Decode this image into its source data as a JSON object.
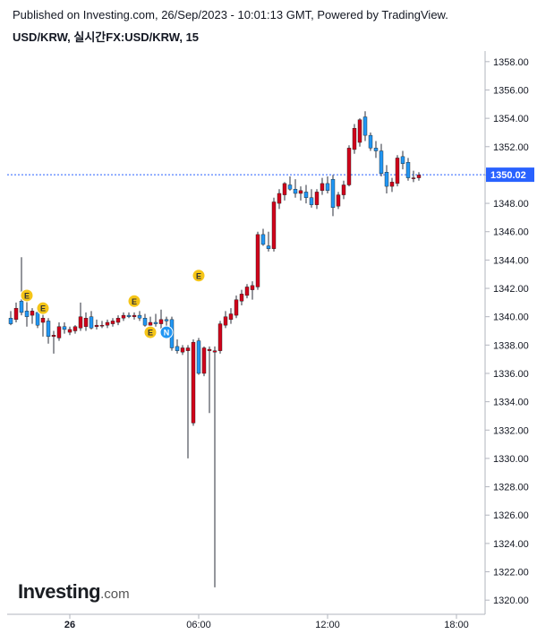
{
  "header": {
    "published": "Published on Investing.com, 26/Sep/2023 - 10:01:13 GMT, Powered by TradingView.",
    "symbol": "USD/KRW, 실시간FX:USD/KRW, 15"
  },
  "logo": {
    "main": "Investing",
    "suffix": ".com"
  },
  "colors": {
    "up": "#d0021b",
    "down": "#2196f3",
    "wick": "#2a2e39",
    "price_line": "#2962ff",
    "badge_e": "#f5c518",
    "badge_n": "#2196f3"
  },
  "chart_data": {
    "type": "candlestick",
    "ylim": [
      1319,
      1359
    ],
    "y_ticks": [
      "1320.00",
      "1322.00",
      "1324.00",
      "1326.00",
      "1328.00",
      "1330.00",
      "1332.00",
      "1334.00",
      "1336.00",
      "1338.00",
      "1340.00",
      "1342.00",
      "1344.00",
      "1346.00",
      "1348.00",
      "1350.00",
      "1352.00",
      "1354.00",
      "1356.00",
      "1358.00"
    ],
    "x_ticks": [
      {
        "label": "26",
        "bar": 11
      },
      {
        "label": "06:00",
        "bar": 35
      },
      {
        "label": "12:00",
        "bar": 59
      },
      {
        "label": "18:00",
        "bar": 83
      }
    ],
    "last_price": "1350.02",
    "candles": [
      {
        "o": 1339.9,
        "h": 1340.4,
        "l": 1339.4,
        "c": 1339.5
      },
      {
        "o": 1339.8,
        "h": 1341.0,
        "l": 1339.6,
        "c": 1340.6
      },
      {
        "o": 1341.1,
        "h": 1344.2,
        "l": 1340.1,
        "c": 1340.3
      },
      {
        "o": 1340.4,
        "h": 1341.3,
        "l": 1339.3,
        "c": 1340.0
      },
      {
        "o": 1340.1,
        "h": 1340.6,
        "l": 1339.5,
        "c": 1340.4
      },
      {
        "o": 1340.3,
        "h": 1340.7,
        "l": 1339.2,
        "c": 1339.4
      },
      {
        "o": 1339.6,
        "h": 1340.2,
        "l": 1338.6,
        "c": 1339.9
      },
      {
        "o": 1339.7,
        "h": 1339.9,
        "l": 1338.1,
        "c": 1338.6
      },
      {
        "o": 1338.6,
        "h": 1339.0,
        "l": 1337.4,
        "c": 1338.7
      },
      {
        "o": 1338.5,
        "h": 1339.6,
        "l": 1338.3,
        "c": 1339.3
      },
      {
        "o": 1339.3,
        "h": 1339.6,
        "l": 1338.8,
        "c": 1339.1
      },
      {
        "o": 1338.9,
        "h": 1339.3,
        "l": 1338.7,
        "c": 1339.1
      },
      {
        "o": 1339.0,
        "h": 1339.4,
        "l": 1338.8,
        "c": 1339.3
      },
      {
        "o": 1339.2,
        "h": 1341.0,
        "l": 1339.0,
        "c": 1340.0
      },
      {
        "o": 1339.3,
        "h": 1340.3,
        "l": 1339.0,
        "c": 1339.9
      },
      {
        "o": 1340.0,
        "h": 1340.4,
        "l": 1339.1,
        "c": 1339.2
      },
      {
        "o": 1339.3,
        "h": 1339.8,
        "l": 1339.1,
        "c": 1339.4
      },
      {
        "o": 1339.4,
        "h": 1339.7,
        "l": 1339.2,
        "c": 1339.4
      },
      {
        "o": 1339.4,
        "h": 1339.8,
        "l": 1339.2,
        "c": 1339.6
      },
      {
        "o": 1339.5,
        "h": 1339.9,
        "l": 1339.3,
        "c": 1339.7
      },
      {
        "o": 1339.6,
        "h": 1340.1,
        "l": 1339.4,
        "c": 1339.9
      },
      {
        "o": 1339.9,
        "h": 1340.3,
        "l": 1339.7,
        "c": 1340.1
      },
      {
        "o": 1340.1,
        "h": 1340.3,
        "l": 1339.9,
        "c": 1340.0
      },
      {
        "o": 1340.0,
        "h": 1340.3,
        "l": 1339.8,
        "c": 1340.1
      },
      {
        "o": 1340.1,
        "h": 1340.4,
        "l": 1339.7,
        "c": 1339.9
      },
      {
        "o": 1339.9,
        "h": 1340.2,
        "l": 1339.3,
        "c": 1339.4
      },
      {
        "o": 1339.4,
        "h": 1340.0,
        "l": 1339.2,
        "c": 1339.6
      },
      {
        "o": 1339.6,
        "h": 1340.2,
        "l": 1339.3,
        "c": 1339.5
      },
      {
        "o": 1339.5,
        "h": 1340.5,
        "l": 1338.8,
        "c": 1339.8
      },
      {
        "o": 1339.8,
        "h": 1340.0,
        "l": 1338.5,
        "c": 1339.7
      },
      {
        "o": 1339.8,
        "h": 1340.0,
        "l": 1337.6,
        "c": 1337.8
      },
      {
        "o": 1337.9,
        "h": 1338.4,
        "l": 1337.4,
        "c": 1337.6
      },
      {
        "o": 1337.5,
        "h": 1338.0,
        "l": 1337.3,
        "c": 1337.8
      },
      {
        "o": 1337.6,
        "h": 1338.0,
        "l": 1330.0,
        "c": 1337.8
      },
      {
        "o": 1332.5,
        "h": 1338.4,
        "l": 1332.3,
        "c": 1338.2
      },
      {
        "o": 1338.3,
        "h": 1338.5,
        "l": 1335.9,
        "c": 1336.0
      },
      {
        "o": 1336.0,
        "h": 1337.9,
        "l": 1335.8,
        "c": 1337.8
      },
      {
        "o": 1337.6,
        "h": 1337.9,
        "l": 1333.2,
        "c": 1337.7
      },
      {
        "o": 1337.5,
        "h": 1337.9,
        "l": 1320.9,
        "c": 1337.6
      },
      {
        "o": 1337.6,
        "h": 1339.7,
        "l": 1337.4,
        "c": 1339.5
      },
      {
        "o": 1339.4,
        "h": 1340.4,
        "l": 1339.2,
        "c": 1340.0
      },
      {
        "o": 1339.8,
        "h": 1340.6,
        "l": 1339.5,
        "c": 1340.2
      },
      {
        "o": 1340.1,
        "h": 1341.5,
        "l": 1339.9,
        "c": 1341.2
      },
      {
        "o": 1341.1,
        "h": 1341.9,
        "l": 1340.8,
        "c": 1341.6
      },
      {
        "o": 1341.5,
        "h": 1342.3,
        "l": 1341.3,
        "c": 1342.1
      },
      {
        "o": 1341.9,
        "h": 1342.5,
        "l": 1341.2,
        "c": 1342.2
      },
      {
        "o": 1342.1,
        "h": 1346.0,
        "l": 1341.9,
        "c": 1345.8
      },
      {
        "o": 1345.8,
        "h": 1346.2,
        "l": 1345.0,
        "c": 1345.1
      },
      {
        "o": 1345.0,
        "h": 1346.0,
        "l": 1344.6,
        "c": 1344.8
      },
      {
        "o": 1344.8,
        "h": 1348.4,
        "l": 1344.6,
        "c": 1348.1
      },
      {
        "o": 1348.0,
        "h": 1349.0,
        "l": 1347.6,
        "c": 1348.7
      },
      {
        "o": 1348.6,
        "h": 1349.5,
        "l": 1348.2,
        "c": 1349.4
      },
      {
        "o": 1349.3,
        "h": 1349.9,
        "l": 1348.9,
        "c": 1349.0
      },
      {
        "o": 1349.0,
        "h": 1349.7,
        "l": 1348.4,
        "c": 1348.7
      },
      {
        "o": 1348.7,
        "h": 1349.2,
        "l": 1348.2,
        "c": 1348.9
      },
      {
        "o": 1348.8,
        "h": 1349.3,
        "l": 1348.0,
        "c": 1348.4
      },
      {
        "o": 1348.4,
        "h": 1349.0,
        "l": 1347.7,
        "c": 1347.9
      },
      {
        "o": 1347.9,
        "h": 1349.0,
        "l": 1347.6,
        "c": 1348.8
      },
      {
        "o": 1348.9,
        "h": 1349.8,
        "l": 1348.6,
        "c": 1349.4
      },
      {
        "o": 1349.4,
        "h": 1349.9,
        "l": 1348.7,
        "c": 1348.9
      },
      {
        "o": 1349.7,
        "h": 1350.0,
        "l": 1347.1,
        "c": 1347.7
      },
      {
        "o": 1347.8,
        "h": 1348.8,
        "l": 1347.6,
        "c": 1348.6
      },
      {
        "o": 1348.6,
        "h": 1349.6,
        "l": 1348.3,
        "c": 1349.3
      },
      {
        "o": 1349.3,
        "h": 1352.1,
        "l": 1349.2,
        "c": 1351.9
      },
      {
        "o": 1351.8,
        "h": 1353.6,
        "l": 1351.5,
        "c": 1353.3
      },
      {
        "o": 1352.3,
        "h": 1354.0,
        "l": 1352.0,
        "c": 1353.9
      },
      {
        "o": 1354.1,
        "h": 1354.5,
        "l": 1352.4,
        "c": 1352.8
      },
      {
        "o": 1352.8,
        "h": 1353.0,
        "l": 1351.7,
        "c": 1351.9
      },
      {
        "o": 1351.9,
        "h": 1352.4,
        "l": 1351.2,
        "c": 1351.7
      },
      {
        "o": 1351.7,
        "h": 1352.2,
        "l": 1349.9,
        "c": 1350.1
      },
      {
        "o": 1350.2,
        "h": 1350.7,
        "l": 1348.7,
        "c": 1349.2
      },
      {
        "o": 1349.2,
        "h": 1349.8,
        "l": 1348.8,
        "c": 1349.5
      },
      {
        "o": 1349.4,
        "h": 1351.4,
        "l": 1349.2,
        "c": 1351.2
      },
      {
        "o": 1351.3,
        "h": 1351.7,
        "l": 1350.4,
        "c": 1350.8
      },
      {
        "o": 1350.9,
        "h": 1351.2,
        "l": 1349.6,
        "c": 1349.8
      },
      {
        "o": 1349.8,
        "h": 1350.3,
        "l": 1349.5,
        "c": 1349.8
      },
      {
        "o": 1349.8,
        "h": 1350.2,
        "l": 1349.6,
        "c": 1350.0
      }
    ],
    "events": [
      {
        "label": "E",
        "bar": 3,
        "kind": "e",
        "y": 1341.5
      },
      {
        "label": "E",
        "bar": 6,
        "kind": "e",
        "y": 1340.6
      },
      {
        "label": "E",
        "bar": 23,
        "kind": "e",
        "y": 1341.1
      },
      {
        "label": "E",
        "bar": 26,
        "kind": "e",
        "y": 1338.9
      },
      {
        "label": "N",
        "bar": 29,
        "kind": "n",
        "y": 1338.9
      },
      {
        "label": "E",
        "bar": 35,
        "kind": "e",
        "y": 1342.9
      }
    ]
  }
}
